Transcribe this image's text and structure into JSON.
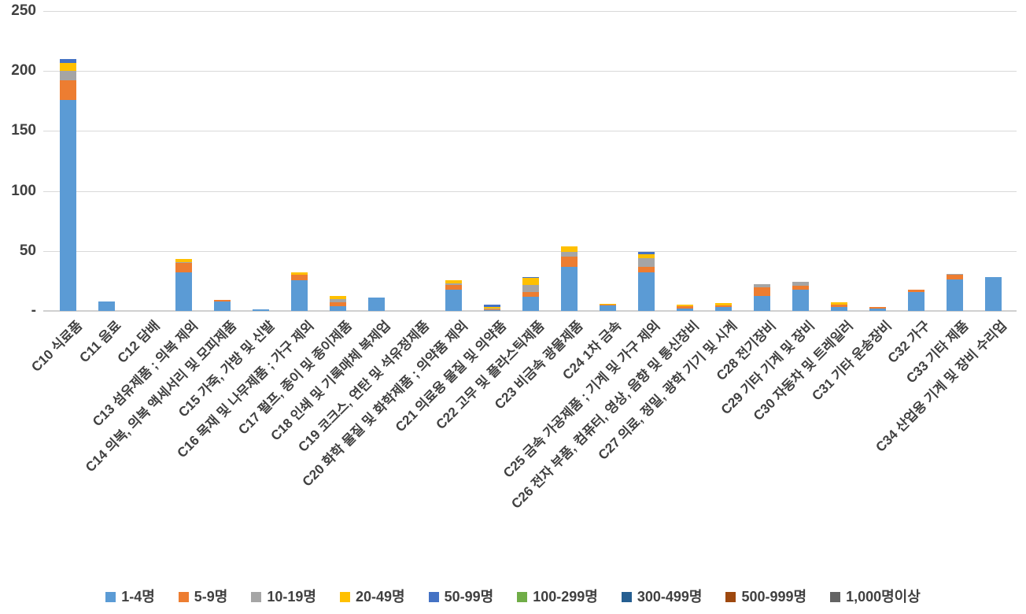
{
  "chart_data": {
    "type": "bar",
    "stacked": true,
    "title": "",
    "xlabel": "",
    "ylabel": "",
    "ylim": [
      0,
      250
    ],
    "grid": true,
    "legend_position": "bottom",
    "yticks": [
      {
        "value": 0,
        "label": "-"
      },
      {
        "value": 50,
        "label": "50"
      },
      {
        "value": 100,
        "label": "100"
      },
      {
        "value": 150,
        "label": "150"
      },
      {
        "value": 200,
        "label": "200"
      },
      {
        "value": 250,
        "label": "250"
      }
    ],
    "categories": [
      "C10 식료품",
      "C11 음료",
      "C12 담배",
      "C13 섬유제품 ; 의복 제외",
      "C14 의복, 의복 액세서리 및 모피제품",
      "C15 가죽, 가방 및 신발",
      "C16 목재 및 나무제품 ; 가구 제외",
      "C17 펄프, 종이 및 종이제품",
      "C18 인쇄 및 기록매체 복제업",
      "C19 코크스, 연탄 및 석유정제품",
      "C20 화학 물질 및 화학제품 ; 의약품 제외",
      "C21 의료용 물질 및 의약품",
      "C22 고무 및 플라스틱제품",
      "C23 비금속 광물제품",
      "C24 1차 금속",
      "C25 금속 가공제품 ; 기계 및 가구 제외",
      "C26 전자 부품, 컴퓨터, 영상, 음향 및 통신장비",
      "C27 의료, 정밀, 광학 기기 및 시계",
      "C28 전기장비",
      "C29 기타 기계 및 장비",
      "C30 자동차 및 트레일러",
      "C31 기타 운송장비",
      "C32 가구",
      "C33 기타 제품",
      "C34 산업용 기계 및 장비 수리업"
    ],
    "series": [
      {
        "name": "1-4명",
        "color": "#5B9BD5",
        "values": [
          176,
          8,
          0,
          32,
          8,
          1.5,
          25.5,
          4,
          11,
          0,
          17.5,
          1,
          12,
          37,
          4.5,
          32,
          2,
          3,
          12.5,
          18,
          3.5,
          2,
          16,
          26,
          28
        ]
      },
      {
        "name": "5-9명",
        "color": "#ED7D31",
        "values": [
          16,
          0,
          0,
          8,
          1,
          0,
          4.5,
          3,
          0,
          0,
          4,
          0.5,
          3.5,
          8.5,
          0.5,
          5,
          2,
          1.5,
          7.5,
          3,
          1.5,
          1.5,
          2,
          4,
          0
        ]
      },
      {
        "name": "10-19명",
        "color": "#A5A5A5",
        "values": [
          8,
          0,
          0,
          1,
          0,
          0,
          0,
          3,
          0,
          0,
          1.5,
          0.5,
          6,
          3.5,
          0,
          7,
          0,
          0,
          2,
          3,
          0,
          0,
          0,
          1,
          0
        ]
      },
      {
        "name": "20-49명",
        "color": "#FFC000",
        "values": [
          7,
          0,
          0,
          2,
          0,
          0,
          2,
          2.5,
          0,
          0,
          2.5,
          1.5,
          6,
          5,
          1,
          3,
          1.5,
          2,
          0,
          0,
          2,
          0,
          0,
          0,
          0
        ]
      },
      {
        "name": "50-99명",
        "color": "#4472C4",
        "values": [
          3,
          0,
          0,
          0,
          0,
          0,
          0,
          0,
          0,
          0,
          0,
          2,
          1,
          0,
          0,
          2.5,
          0,
          0,
          0,
          0,
          0,
          0,
          0,
          0,
          0
        ]
      },
      {
        "name": "100-299명",
        "color": "#70AD47",
        "values": [
          0,
          0,
          0,
          0,
          0,
          0,
          0,
          0,
          0,
          0,
          0,
          0,
          0,
          0,
          0,
          0,
          0,
          0,
          0,
          0,
          0,
          0,
          0,
          0,
          0
        ]
      },
      {
        "name": "300-499명",
        "color": "#255E91",
        "values": [
          0,
          0,
          0,
          0,
          0,
          0,
          0,
          0,
          0,
          0,
          0,
          0,
          0,
          0,
          0,
          0,
          0,
          0,
          0,
          0,
          0,
          0,
          0,
          0,
          0
        ]
      },
      {
        "name": "500-999명",
        "color": "#9E480E",
        "values": [
          0,
          0,
          0,
          0,
          0,
          0,
          0,
          0,
          0,
          0,
          0,
          0,
          0,
          0,
          0,
          0,
          0,
          0,
          0,
          0,
          0,
          0,
          0,
          0,
          0
        ]
      },
      {
        "name": "1,000명이상",
        "color": "#636363",
        "values": [
          0,
          0,
          0,
          0,
          0,
          0,
          0,
          0,
          0,
          0,
          0,
          0,
          0,
          0,
          0,
          0,
          0,
          0,
          0,
          0,
          0,
          0,
          0,
          0,
          0
        ]
      }
    ]
  }
}
